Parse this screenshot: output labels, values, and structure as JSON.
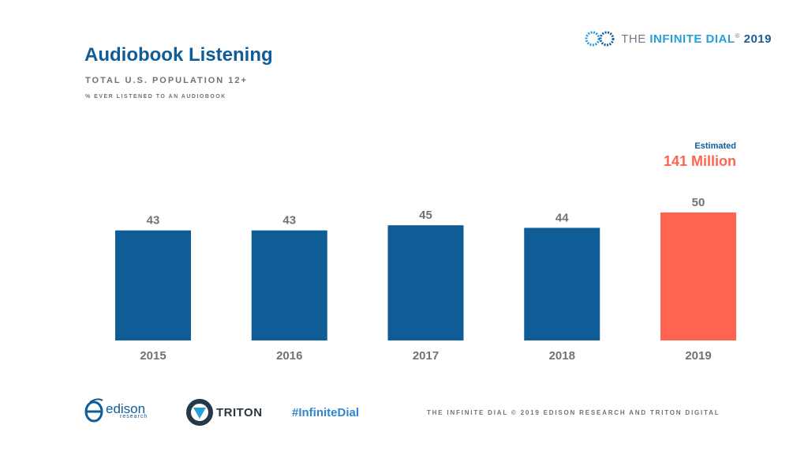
{
  "brand": {
    "part1": "THE",
    "part2": "INFINITE DIAL",
    "mark": "®",
    "year": "2019"
  },
  "header": {
    "title": "Audiobook Listening",
    "subtitle": "TOTAL U.S. POPULATION 12+",
    "caption": "% EVER LISTENED TO AN AUDIOBOOK"
  },
  "annotation": {
    "label": "Estimated",
    "value": "141 Million"
  },
  "footer": {
    "edison": "edison",
    "edison_sub": "research",
    "triton": "TRITON",
    "hashtag": "#InfiniteDial",
    "copyright": "THE INFINITE DIAL   © 2019 EDISON RESEARCH AND TRITON DIGITAL"
  },
  "colors": {
    "bar": "#0f5c96",
    "highlight": "#ff6450",
    "text": "#6f7279"
  },
  "chart_data": {
    "type": "bar",
    "title": "Audiobook Listening",
    "subtitle": "TOTAL U.S. POPULATION 12+",
    "ylabel": "% EVER LISTENED TO AN AUDIOBOOK",
    "xlabel": "",
    "categories": [
      "2015",
      "2016",
      "2017",
      "2018",
      "2019"
    ],
    "values": [
      43,
      43,
      45,
      44,
      50
    ],
    "highlight_index": 4,
    "ylim": [
      0,
      50
    ],
    "grid": false,
    "legend": "none"
  }
}
